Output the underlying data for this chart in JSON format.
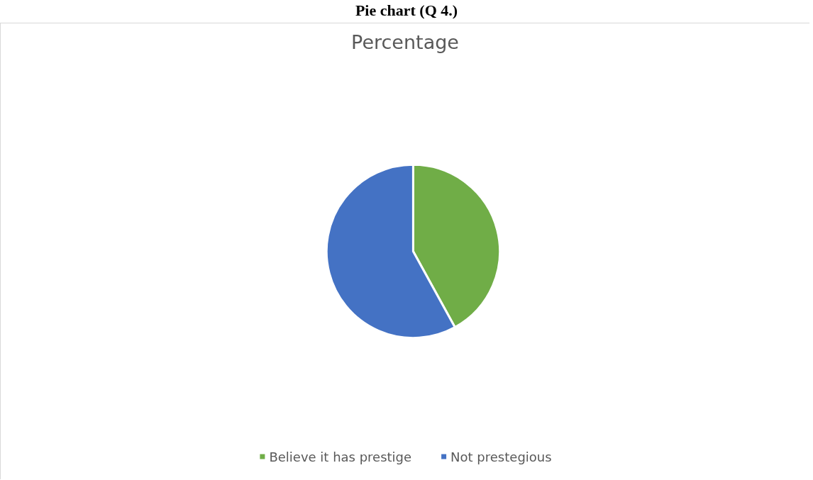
{
  "chart_data": {
    "type": "pie",
    "title": "Percentage",
    "annotations": [
      "Pie chart (Q 4.)"
    ],
    "categories": [
      "Believe it has prestige",
      "Not prestegious"
    ],
    "values": [
      42,
      58
    ],
    "colors": [
      "#70ad47",
      "#4472c4"
    ],
    "legend": "bottom"
  }
}
